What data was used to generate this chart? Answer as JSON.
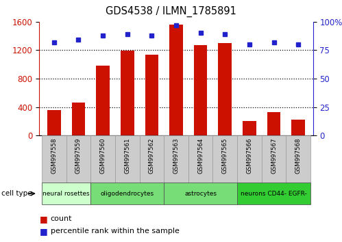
{
  "title": "GDS4538 / ILMN_1785891",
  "samples": [
    "GSM997558",
    "GSM997559",
    "GSM997560",
    "GSM997561",
    "GSM997562",
    "GSM997563",
    "GSM997564",
    "GSM997565",
    "GSM997566",
    "GSM997567",
    "GSM997568"
  ],
  "counts": [
    360,
    460,
    980,
    1190,
    1140,
    1560,
    1270,
    1300,
    200,
    330,
    220
  ],
  "percentiles": [
    82,
    84,
    88,
    89,
    88,
    97,
    90,
    89,
    80,
    82,
    80
  ],
  "bar_color": "#cc1100",
  "dot_color": "#2222cc",
  "left_ylim": [
    0,
    1600
  ],
  "right_ylim": [
    0,
    100
  ],
  "left_yticks": [
    0,
    400,
    800,
    1200,
    1600
  ],
  "right_yticks": [
    0,
    25,
    50,
    75,
    100
  ],
  "right_yticklabels": [
    "0",
    "25",
    "50",
    "75",
    "100%"
  ],
  "cell_type_groups": [
    {
      "label": "neural rosettes",
      "start": 0,
      "end": 1,
      "color": "#ccffcc"
    },
    {
      "label": "oligodendrocytes",
      "start": 2,
      "end": 4,
      "color": "#77dd77"
    },
    {
      "label": "astrocytes",
      "start": 5,
      "end": 7,
      "color": "#77dd77"
    },
    {
      "label": "neurons CD44- EGFR-",
      "start": 8,
      "end": 10,
      "color": "#33cc33"
    }
  ],
  "legend_count_label": "count",
  "legend_percentile_label": "percentile rank within the sample",
  "cell_type_label": "cell type",
  "tick_label_color_left": "#cc1100",
  "tick_label_color_right": "#2222cc",
  "sample_box_color": "#cccccc",
  "sample_box_edge": "#999999"
}
